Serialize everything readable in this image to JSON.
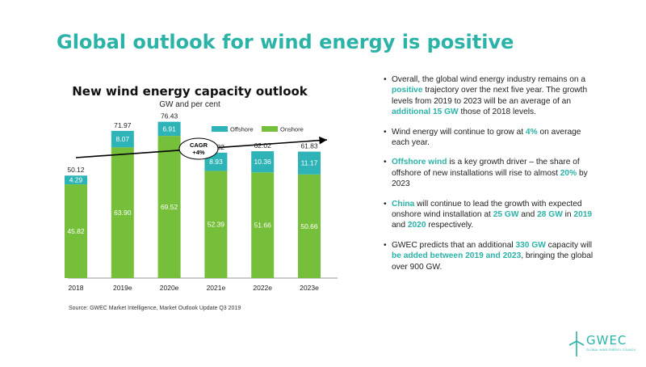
{
  "slide": {
    "title": "Global outlook for wind energy is positive",
    "source": "Source: GWEC Market Intelligence, Market Outlook Update Q3 2019"
  },
  "chart_data": {
    "type": "bar",
    "stacked": true,
    "title": "New wind energy capacity outlook",
    "subtitle": "GW and per cent",
    "categories": [
      "2018",
      "2019e",
      "2020e",
      "2021e",
      "2022e",
      "2023e"
    ],
    "series": [
      {
        "name": "Onshore",
        "color": "#76bf3a",
        "values": [
          45.82,
          63.9,
          69.52,
          52.39,
          51.66,
          50.66
        ]
      },
      {
        "name": "Offshore",
        "color": "#2eb4b7",
        "values": [
          4.29,
          8.07,
          6.91,
          8.93,
          10.36,
          11.17
        ]
      }
    ],
    "totals": [
      "50.12",
      "71.97",
      "76.43",
      "61.32",
      "62.02",
      "61.83"
    ],
    "value_labels": {
      "Onshore": [
        "45.82",
        "63.90",
        "69.52",
        "52.39",
        "51.66",
        "50.66"
      ],
      "Offshore": [
        "4.29",
        "8.07",
        "6.91",
        "8.93",
        "10.36",
        "11.17"
      ]
    },
    "legend_position": "top-right",
    "ylim": [
      0,
      85
    ],
    "grid": false,
    "annotation": {
      "line1": "CAGR",
      "line2": "+4%"
    }
  },
  "bullets": [
    {
      "parts": [
        {
          "t": "Overall, the global wind energy industry remains on a "
        },
        {
          "t": "positive",
          "hl": true
        },
        {
          "t": " trajectory over the next five year. The growth levels from 2019 to 2023 will be an average of an "
        },
        {
          "t": "additional 15 GW",
          "hl": true
        },
        {
          "t": " those of 2018 levels."
        }
      ]
    },
    {
      "parts": [
        {
          "t": "Wind energy will continue to grow at "
        },
        {
          "t": "4%",
          "hl": true
        },
        {
          "t": " on average each year."
        }
      ]
    },
    {
      "parts": [
        {
          "t": "Offshore wind",
          "hl": true
        },
        {
          "t": " is a key growth driver – the share of offshore of new installations will rise to almost "
        },
        {
          "t": "20%",
          "hl": true
        },
        {
          "t": " by 2023"
        }
      ]
    },
    {
      "parts": [
        {
          "t": "China",
          "hl": true
        },
        {
          "t": " will continue to lead the growth with expected onshore wind installation at "
        },
        {
          "t": "25 GW",
          "hl": true
        },
        {
          "t": " and "
        },
        {
          "t": "28 GW",
          "hl": true
        },
        {
          "t": " in "
        },
        {
          "t": "2019",
          "hl": true
        },
        {
          "t": " and "
        },
        {
          "t": "2020",
          "hl": true
        },
        {
          "t": " respectively."
        }
      ]
    },
    {
      "parts": [
        {
          "t": "GWEC predicts that an additional "
        },
        {
          "t": "330 GW",
          "hl": true
        },
        {
          "t": " capacity will "
        },
        {
          "t": "be added between 2019 and 2023",
          "hl": true
        },
        {
          "t": ", bringing the global over 900 GW."
        }
      ]
    }
  ],
  "logo": {
    "name": "GWEC",
    "tagline": "GLOBAL WIND ENERGY COUNCIL",
    "icon": "wind-turbine-icon",
    "color": "#2bb3a8"
  }
}
